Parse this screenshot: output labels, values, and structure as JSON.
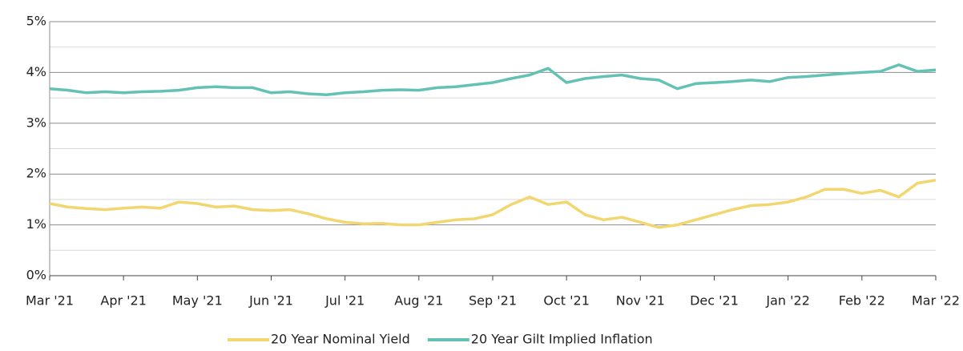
{
  "chart_data": {
    "type": "line",
    "categories": [
      "Mar '21",
      null,
      null,
      null,
      "Apr '21",
      null,
      null,
      null,
      "May '21",
      null,
      null,
      null,
      "Jun '21",
      null,
      null,
      null,
      "Jul '21",
      null,
      null,
      null,
      "Aug '21",
      null,
      null,
      null,
      "Sep '21",
      null,
      null,
      null,
      "Oct '21",
      null,
      null,
      null,
      "Nov '21",
      null,
      null,
      null,
      "Dec '21",
      null,
      null,
      null,
      "Jan '22",
      null,
      null,
      null,
      "Feb '22",
      null,
      null,
      null,
      "Mar '22"
    ],
    "series": [
      {
        "name": "20 Year Nominal Yield",
        "color": "#f2d670",
        "values": [
          1.42,
          1.35,
          1.32,
          1.3,
          1.33,
          1.35,
          1.33,
          1.45,
          1.42,
          1.35,
          1.37,
          1.3,
          1.28,
          1.3,
          1.22,
          1.12,
          1.05,
          1.02,
          1.03,
          1.0,
          1.0,
          1.05,
          1.1,
          1.12,
          1.2,
          1.4,
          1.55,
          1.4,
          1.45,
          1.2,
          1.1,
          1.15,
          1.05,
          0.95,
          1.0,
          1.1,
          1.2,
          1.3,
          1.38,
          1.4,
          1.45,
          1.55,
          1.7,
          1.7,
          1.62,
          1.68,
          1.55,
          1.82,
          1.88
        ]
      },
      {
        "name": "20 Year Gilt Implied Inflation",
        "color": "#64c2b4",
        "values": [
          3.68,
          3.65,
          3.6,
          3.62,
          3.6,
          3.62,
          3.63,
          3.65,
          3.7,
          3.72,
          3.7,
          3.7,
          3.6,
          3.62,
          3.58,
          3.56,
          3.6,
          3.62,
          3.65,
          3.66,
          3.65,
          3.7,
          3.72,
          3.76,
          3.8,
          3.88,
          3.95,
          4.08,
          3.8,
          3.88,
          3.92,
          3.95,
          3.88,
          3.85,
          3.68,
          3.78,
          3.8,
          3.82,
          3.85,
          3.82,
          3.9,
          3.92,
          3.95,
          3.98,
          4.0,
          4.02,
          4.15,
          4.02,
          4.05
        ]
      }
    ],
    "ylim": [
      0,
      5
    ],
    "yticks": [
      {
        "value": 0,
        "label": "0%"
      },
      {
        "value": 1,
        "label": "1%"
      },
      {
        "value": 2,
        "label": "2%"
      },
      {
        "value": 3,
        "label": "3%"
      },
      {
        "value": 4,
        "label": "4%"
      },
      {
        "value": 5,
        "label": "5%"
      }
    ],
    "minor_yticks": [
      0.5,
      1.5,
      2.5,
      3.5,
      4.5
    ],
    "grid": true,
    "legend": "bottom"
  }
}
